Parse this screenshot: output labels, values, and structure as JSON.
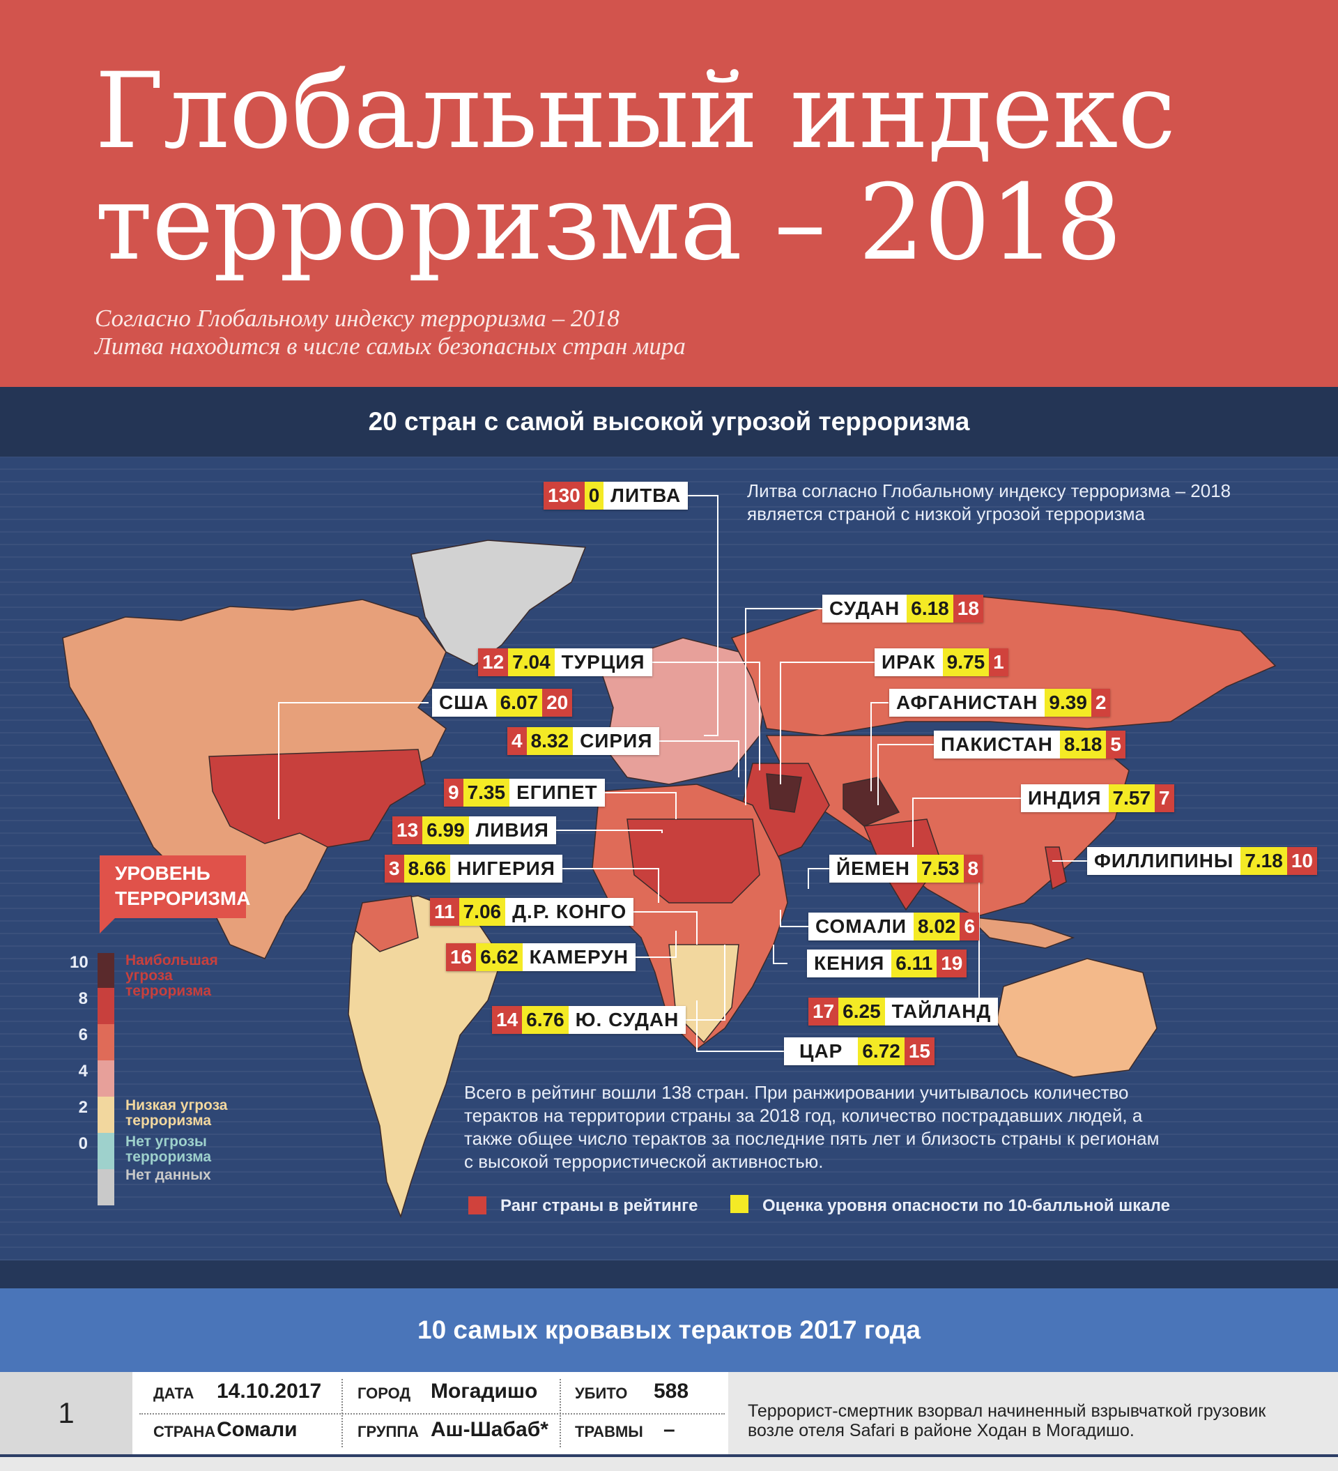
{
  "hero": {
    "title_line1": "Глобальный индекс",
    "title_line2": "терроризма – 2018",
    "subtitle_line1": "Согласно Глобальному индексу терроризма – 2018",
    "subtitle_line2": "Литва находится в числе самых безопасных стран мира"
  },
  "top20": {
    "header": "20 стран с самой высокой угрозой терроризма"
  },
  "map": {
    "lithuania_note_line1": "Литва согласно Глобальному индексу терроризма – 2018",
    "lithuania_note_line2": "является страной с низкой угрозой терроризма",
    "countries": [
      {
        "name": "ЛИТВА",
        "rank": "130",
        "score": "0"
      },
      {
        "name": "СУДАН",
        "rank": "18",
        "score": "6.18"
      },
      {
        "name": "ТУРЦИЯ",
        "rank": "12",
        "score": "7.04"
      },
      {
        "name": "ИРАК",
        "rank": "1",
        "score": "9.75"
      },
      {
        "name": "США",
        "rank": "20",
        "score": "6.07"
      },
      {
        "name": "АФГАНИСТАН",
        "rank": "2",
        "score": "9.39"
      },
      {
        "name": "СИРИЯ",
        "rank": "4",
        "score": "8.32"
      },
      {
        "name": "ПАКИСТАН",
        "rank": "5",
        "score": "8.18"
      },
      {
        "name": "ЕГИПЕТ",
        "rank": "9",
        "score": "7.35"
      },
      {
        "name": "ИНДИЯ",
        "rank": "7",
        "score": "7.57"
      },
      {
        "name": "ЛИВИЯ",
        "rank": "13",
        "score": "6.99"
      },
      {
        "name": "ФИЛЛИПИНЫ",
        "rank": "10",
        "score": "7.18"
      },
      {
        "name": "НИГЕРИЯ",
        "rank": "3",
        "score": "8.66"
      },
      {
        "name": "ЙЕМЕН",
        "rank": "8",
        "score": "7.53"
      },
      {
        "name": "Д.Р. КОНГО",
        "rank": "11",
        "score": "7.06"
      },
      {
        "name": "СОМАЛИ",
        "rank": "6",
        "score": "8.02"
      },
      {
        "name": "КАМЕРУН",
        "rank": "16",
        "score": "6.62"
      },
      {
        "name": "КЕНИЯ",
        "rank": "19",
        "score": "6.11"
      },
      {
        "name": "ТАЙЛАНД",
        "rank": "17",
        "score": "6.25"
      },
      {
        "name": "Ю. СУДАН",
        "rank": "14",
        "score": "6.76"
      },
      {
        "name": "ЦАР",
        "rank": "15",
        "score": "6.72"
      }
    ],
    "about": "Всего в рейтинг вошли 138 стран. При ранжировании учитывалось количество терактов на территории страны за 2018 год, количество пострадавших людей, а также общее число терактов за последние пять лет и близость страны к регионам с высокой террористической активностью.",
    "legend_rank": "Ранг страны в рейтинге",
    "legend_score": "Оценка уровня опасности по 10-балльной шкале",
    "level_title_line1": "УРОВЕНЬ",
    "level_title_line2": "ТЕРРОРИЗМА",
    "scale_numbers": [
      "10",
      "8",
      "6",
      "4",
      "2",
      "0"
    ],
    "scale_labels": {
      "highest": "Наибольшая угроза терроризма",
      "low": "Низкая угроза терроризма",
      "none": "Нет угрозы терроризма",
      "nodata": "Нет данных"
    },
    "colors": {
      "highest": "#5a2a2c",
      "high": "#c8403d",
      "medium": "#df6b58",
      "low_medium": "#e7a09a",
      "low": "#f2d79e",
      "none": "#9ed1cc",
      "nodata": "#c9c9c9"
    }
  },
  "top10": {
    "header": "10 самых кровавых терактов 2017 года"
  },
  "attacks": {
    "labels": {
      "date": "ДАТА",
      "country": "СТРАНА",
      "city": "ГОРОД",
      "group": "ГРУППА",
      "killed": "УБИТО",
      "injured": "ТРАВМЫ"
    },
    "rows": [
      {
        "num": "1",
        "date": "14.10.2017",
        "country": "Сомали",
        "city": "Могадишо",
        "group": "Аш-Шабаб*",
        "killed": "588",
        "injured": "–",
        "description": "Террорист-смертник взорвал начиненный взрывчаткой грузовик возле отеля Safari в районе Ходан в Могадишо."
      }
    ]
  }
}
